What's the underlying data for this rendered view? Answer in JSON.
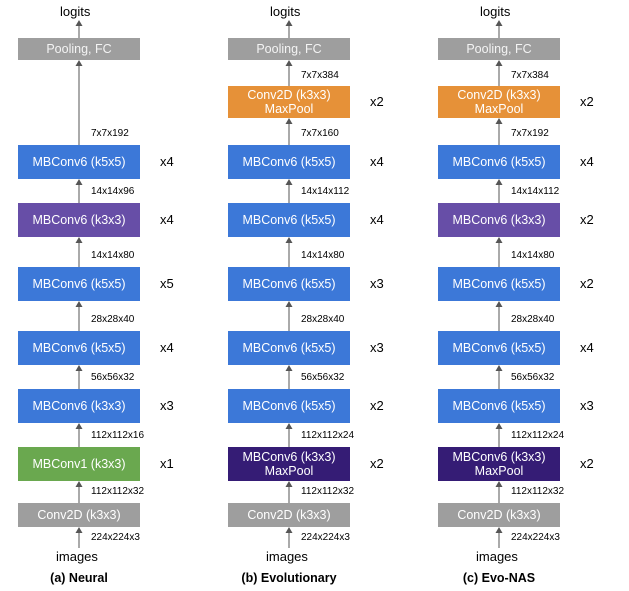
{
  "colors": {
    "gray": "#9e9e9e",
    "blue": "#3c78d8",
    "purple": "#674ea7",
    "green": "#6aa84f",
    "orange": "#e69138",
    "dark_purple": "#351c75"
  },
  "columns": [
    {
      "caption": "(a) Neural",
      "top_label": "logits",
      "bottom_label": "images",
      "input_dim": "224x224x3",
      "pooling": {
        "label": "Pooling, FC",
        "color": "gray"
      },
      "extra_block": null,
      "blocks": [
        {
          "lines": [
            "Conv2D (k3x3)"
          ],
          "color": "gray",
          "repeat": "",
          "dim": "112x112x32"
        },
        {
          "lines": [
            "MBConv1 (k3x3)"
          ],
          "color": "green",
          "repeat": "x1",
          "dim": "112x112x16"
        },
        {
          "lines": [
            "MBConv6 (k3x3)"
          ],
          "color": "blue",
          "repeat": "x3",
          "dim": "56x56x32"
        },
        {
          "lines": [
            "MBConv6 (k5x5)"
          ],
          "color": "blue",
          "repeat": "x4",
          "dim": "28x28x40"
        },
        {
          "lines": [
            "MBConv6 (k5x5)"
          ],
          "color": "blue",
          "repeat": "x5",
          "dim": "14x14x80"
        },
        {
          "lines": [
            "MBConv6 (k3x3)"
          ],
          "color": "purple",
          "repeat": "x4",
          "dim": "14x14x96"
        },
        {
          "lines": [
            "MBConv6 (k5x5)"
          ],
          "color": "blue",
          "repeat": "x4",
          "dim": "7x7x192"
        }
      ]
    },
    {
      "caption": "(b) Evolutionary",
      "top_label": "logits",
      "bottom_label": "images",
      "input_dim": "224x224x3",
      "pooling": {
        "label": "Pooling, FC",
        "color": "gray"
      },
      "extra_block": {
        "lines": [
          "Conv2D (k3x3)",
          "MaxPool"
        ],
        "color": "orange",
        "repeat": "x2",
        "dim": "7x7x384"
      },
      "blocks": [
        {
          "lines": [
            "Conv2D (k3x3)"
          ],
          "color": "gray",
          "repeat": "",
          "dim": "112x112x32"
        },
        {
          "lines": [
            "MBConv6 (k3x3)",
            "MaxPool"
          ],
          "color": "dark_purple",
          "repeat": "x2",
          "dim": "112x112x24"
        },
        {
          "lines": [
            "MBConv6 (k5x5)"
          ],
          "color": "blue",
          "repeat": "x2",
          "dim": "56x56x32"
        },
        {
          "lines": [
            "MBConv6 (k5x5)"
          ],
          "color": "blue",
          "repeat": "x3",
          "dim": "28x28x40"
        },
        {
          "lines": [
            "MBConv6 (k5x5)"
          ],
          "color": "blue",
          "repeat": "x3",
          "dim": "14x14x80"
        },
        {
          "lines": [
            "MBConv6 (k5x5)"
          ],
          "color": "blue",
          "repeat": "x4",
          "dim": "14x14x112"
        },
        {
          "lines": [
            "MBConv6 (k5x5)"
          ],
          "color": "blue",
          "repeat": "x4",
          "dim": "7x7x160"
        }
      ]
    },
    {
      "caption": "(c) Evo-NAS",
      "top_label": "logits",
      "bottom_label": "images",
      "input_dim": "224x224x3",
      "pooling": {
        "label": "Pooling, FC",
        "color": "gray"
      },
      "extra_block": {
        "lines": [
          "Conv2D (k3x3)",
          "MaxPool"
        ],
        "color": "orange",
        "repeat": "x2",
        "dim": "7x7x384"
      },
      "blocks": [
        {
          "lines": [
            "Conv2D (k3x3)"
          ],
          "color": "gray",
          "repeat": "",
          "dim": "112x112x32"
        },
        {
          "lines": [
            "MBConv6 (k3x3)",
            "MaxPool"
          ],
          "color": "dark_purple",
          "repeat": "x2",
          "dim": "112x112x24"
        },
        {
          "lines": [
            "MBConv6 (k5x5)"
          ],
          "color": "blue",
          "repeat": "x3",
          "dim": "56x56x32"
        },
        {
          "lines": [
            "MBConv6 (k5x5)"
          ],
          "color": "blue",
          "repeat": "x4",
          "dim": "28x28x40"
        },
        {
          "lines": [
            "MBConv6 (k5x5)"
          ],
          "color": "blue",
          "repeat": "x2",
          "dim": "14x14x80"
        },
        {
          "lines": [
            "MBConv6 (k3x3)"
          ],
          "color": "purple",
          "repeat": "x2",
          "dim": "14x14x112"
        },
        {
          "lines": [
            "MBConv6 (k5x5)"
          ],
          "color": "blue",
          "repeat": "x4",
          "dim": "7x7x192"
        }
      ]
    }
  ]
}
